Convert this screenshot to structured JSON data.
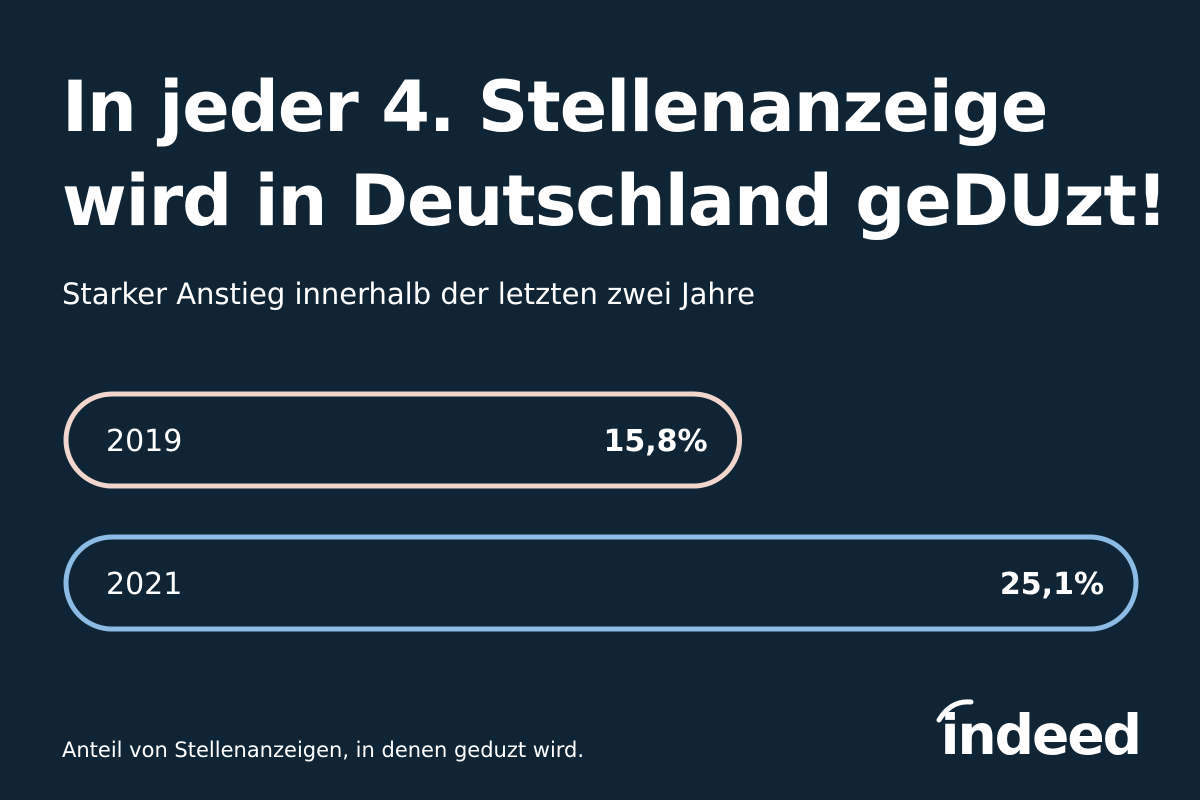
{
  "header": {
    "title_line1": "In jeder 4. Stellenanzeige",
    "title_line2": "wird in Deutschland geDUzt!",
    "subtitle": "Starker Anstieg innerhalb der letzten zwei Jahre"
  },
  "footer": {
    "note": "Anteil von Stellenanzeigen, in denen geduzt wird.",
    "logo_text": "indeed"
  },
  "colors": {
    "background": "#0f2535",
    "text": "#ffffff",
    "bar_2019": "#f2d5cc",
    "bar_2021": "#8cbbe6"
  },
  "chart_data": {
    "type": "bar",
    "orientation": "horizontal",
    "categories": [
      "2019",
      "2021"
    ],
    "values": [
      15.8,
      25.1
    ],
    "value_labels": [
      "15,8%",
      "25,1%"
    ],
    "unit": "%",
    "title": "In jeder 4. Stellenanzeige wird in Deutschland geDUzt!",
    "subtitle": "Starker Anstieg innerhalb der letzten zwei Jahre",
    "xlabel": "",
    "ylabel": "",
    "grid": false,
    "legend": "none"
  }
}
